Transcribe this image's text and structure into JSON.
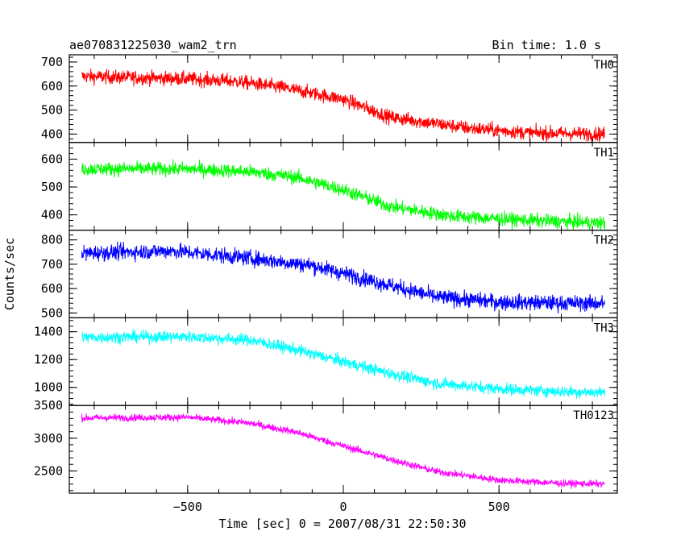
{
  "header": {
    "left_title": "ae070831225030_wam2_trn",
    "right_title": "Bin time: 1.0 s"
  },
  "axes": {
    "xlabel": "Time [sec] 0 = 2007/08/31 22:50:30",
    "ylabel": "Counts/sec"
  },
  "chart_data": {
    "type": "line",
    "title": "ae070831225030_wam2_trn",
    "subtitle": "Bin time: 1.0 s",
    "xlabel": "Time [sec] 0 = 2007/08/31 22:50:30",
    "ylabel": "Counts/sec",
    "xlim": [
      -880,
      880
    ],
    "x_range": [
      -840,
      840
    ],
    "x_ticks": [
      -500,
      0,
      500
    ],
    "x_tick_labels": [
      "−500",
      "0",
      "500"
    ],
    "grid": false,
    "panels": [
      {
        "name": "TH0",
        "color": "#ff0000",
        "ylim": [
          365,
          730
        ],
        "y_ticks": [
          400,
          500,
          600,
          700
        ],
        "y_tick_labels": [
          "400",
          "500",
          "600",
          "700"
        ],
        "trend": {
          "x": [
            -840,
            -500,
            -350,
            -200,
            0,
            150,
            400,
            600,
            840
          ],
          "y": [
            640,
            630,
            620,
            595,
            545,
            470,
            425,
            405,
            400
          ]
        },
        "noise": 38
      },
      {
        "name": "TH1",
        "color": "#00ff00",
        "ylim": [
          345,
          660
        ],
        "y_ticks": [
          400,
          500,
          600
        ],
        "y_tick_labels": [
          "400",
          "500",
          "600"
        ],
        "trend": {
          "x": [
            -840,
            -500,
            -300,
            -150,
            0,
            150,
            350,
            600,
            840
          ],
          "y": [
            565,
            565,
            555,
            535,
            490,
            430,
            395,
            380,
            370
          ]
        },
        "noise": 32
      },
      {
        "name": "TH2",
        "color": "#0000ff",
        "ylim": [
          480,
          840
        ],
        "y_ticks": [
          500,
          600,
          700,
          800
        ],
        "y_tick_labels": [
          "500",
          "600",
          "700",
          "800"
        ],
        "trend": {
          "x": [
            -840,
            -550,
            -300,
            -100,
            100,
            300,
            500,
            700,
            840
          ],
          "y": [
            745,
            755,
            725,
            695,
            630,
            565,
            545,
            540,
            540
          ]
        },
        "noise": 42
      },
      {
        "name": "TH3",
        "color": "#00ffff",
        "ylim": [
          870,
          1500
        ],
        "y_ticks": [
          1000,
          1200,
          1400
        ],
        "y_tick_labels": [
          "1000",
          "1200",
          "1400"
        ],
        "trend": {
          "x": [
            -840,
            -500,
            -300,
            -150,
            0,
            150,
            300,
            500,
            700,
            840
          ],
          "y": [
            1360,
            1365,
            1340,
            1270,
            1185,
            1100,
            1030,
            990,
            970,
            965
          ]
        },
        "noise": 55
      },
      {
        "name": "TH0123",
        "color": "#ff00ff",
        "ylim": [
          2160,
          3500
        ],
        "y_ticks": [
          2500,
          3000,
          3500
        ],
        "y_tick_labels": [
          "2500",
          "3000",
          "3500"
        ],
        "trend": {
          "x": [
            -840,
            -500,
            -300,
            -150,
            0,
            150,
            300,
            500,
            700,
            840
          ],
          "y": [
            3310,
            3320,
            3230,
            3090,
            2880,
            2680,
            2490,
            2360,
            2310,
            2300
          ]
        },
        "noise": 70
      }
    ]
  }
}
